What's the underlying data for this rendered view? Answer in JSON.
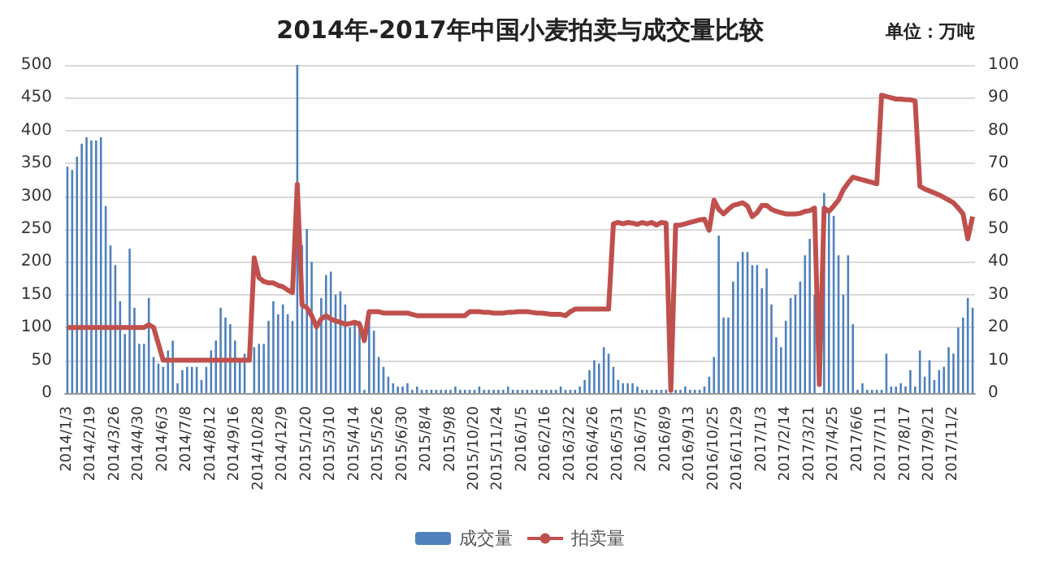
{
  "chart_data": {
    "type": "bar",
    "title": "2014年-2017年中国小麦拍卖与成交量比较",
    "annotations": [
      "单位：万吨"
    ],
    "categories": [
      "2014/1/3",
      null,
      null,
      null,
      null,
      "2014/2/19",
      null,
      null,
      null,
      null,
      "2014/3/26",
      null,
      null,
      null,
      null,
      "2014/4/30",
      null,
      null,
      null,
      null,
      "2014/6/3",
      null,
      null,
      null,
      null,
      "2014/7/8",
      null,
      null,
      null,
      null,
      "2014/8/12",
      null,
      null,
      null,
      null,
      "2014/9/16",
      null,
      null,
      null,
      null,
      "2014/10/28",
      null,
      null,
      null,
      null,
      "2014/12/9",
      null,
      null,
      null,
      null,
      "2015/1/20",
      null,
      null,
      null,
      null,
      "2015/3/10",
      null,
      null,
      null,
      null,
      "2015/4/14",
      null,
      null,
      null,
      null,
      "2015/5/26",
      null,
      null,
      null,
      null,
      "2015/6/30",
      null,
      null,
      null,
      null,
      "2015/8/4",
      null,
      null,
      null,
      null,
      "2015/9/8",
      null,
      null,
      null,
      null,
      "2015/10/20",
      null,
      null,
      null,
      null,
      "2015/11/24",
      null,
      null,
      null,
      null,
      "2016/1/5",
      null,
      null,
      null,
      null,
      "2016/2/16",
      null,
      null,
      null,
      null,
      "2016/3/22",
      null,
      null,
      null,
      null,
      "2016/4/26",
      null,
      null,
      null,
      null,
      "2016/5/31",
      null,
      null,
      null,
      null,
      "2016/7/5",
      null,
      null,
      null,
      null,
      "2016/8/9",
      null,
      null,
      null,
      null,
      "2016/9/13",
      null,
      null,
      null,
      null,
      "2016/10/25",
      null,
      null,
      null,
      null,
      "2016/11/29",
      null,
      null,
      null,
      null,
      "2017/1/3",
      null,
      null,
      null,
      null,
      "2017/2/14",
      null,
      null,
      null,
      null,
      "2017/3/21",
      null,
      null,
      null,
      null,
      "2017/4/25",
      null,
      null,
      null,
      null,
      "2017/6/6",
      null,
      null,
      null,
      null,
      "2017/7/11",
      null,
      null,
      null,
      null,
      "2017/8/17",
      null,
      null,
      null,
      null,
      "2017/9/21",
      null,
      null,
      null,
      null,
      "2017/11/2",
      null,
      null,
      null,
      null
    ],
    "series": [
      {
        "name": "成交量",
        "axis": "y2",
        "color": "#4f81bd",
        "values": [
          69,
          68,
          72,
          76,
          78,
          77,
          77,
          78,
          57,
          45,
          39,
          28,
          18,
          44,
          26,
          15,
          15,
          29,
          11,
          9,
          8,
          13,
          16,
          3,
          7,
          8,
          8,
          8,
          4,
          8,
          13,
          16,
          26,
          23,
          21,
          16,
          10,
          12,
          null,
          14,
          15,
          15,
          22,
          28,
          24,
          27,
          24,
          22,
          100,
          45,
          50,
          40,
          21,
          29,
          36,
          37,
          30,
          31,
          27,
          20,
          22,
          22,
          1,
          22,
          19,
          11,
          8,
          5,
          3,
          2,
          2,
          3,
          1,
          2,
          1,
          1,
          1,
          1,
          1,
          1,
          1,
          2,
          1,
          1,
          1,
          1,
          2,
          1,
          1,
          1,
          1,
          1,
          2,
          1,
          1,
          1,
          1,
          1,
          1,
          1,
          1,
          1,
          1,
          2,
          1,
          1,
          1,
          2,
          4,
          7,
          10,
          9,
          14,
          12,
          8,
          4,
          3,
          3,
          3,
          2,
          1,
          1,
          1,
          1,
          1,
          1,
          0,
          1,
          1,
          2,
          1,
          1,
          1,
          2,
          5,
          11,
          48,
          23,
          23,
          34,
          40,
          43,
          43,
          39,
          39,
          32,
          38,
          27,
          17,
          14,
          22,
          29,
          30,
          34,
          42,
          47,
          30,
          0,
          61,
          56,
          54,
          42,
          30,
          42,
          21,
          1,
          3,
          1,
          1,
          1,
          1,
          12,
          2,
          2,
          3,
          2,
          7,
          2,
          13,
          5,
          10,
          4,
          7,
          8,
          14,
          12,
          20,
          23,
          29,
          26
        ]
      },
      {
        "name": "拍卖量",
        "type": "line",
        "color": "#c0504d",
        "values": [
          100,
          100,
          100,
          100,
          100,
          100,
          100,
          100,
          100,
          100,
          100,
          100,
          100,
          100,
          100,
          100,
          100,
          104,
          100,
          75,
          50,
          50,
          50,
          50,
          50,
          50,
          50,
          50,
          50,
          50,
          50,
          50,
          50,
          50,
          50,
          50,
          50,
          50,
          50,
          206,
          176,
          170,
          168,
          168,
          164,
          162,
          157,
          153,
          318,
          134,
          130,
          118,
          101,
          113,
          118,
          113,
          110,
          108,
          105,
          106,
          108,
          105,
          80,
          124,
          124,
          124,
          122,
          122,
          122,
          122,
          122,
          122,
          120,
          118,
          118,
          118,
          118,
          118,
          118,
          118,
          118,
          118,
          118,
          118,
          124,
          124,
          124,
          123,
          123,
          122,
          122,
          122,
          123,
          123,
          124,
          124,
          124,
          123,
          122,
          122,
          121,
          120,
          120,
          120,
          118,
          124,
          128,
          128,
          128,
          128,
          128,
          128,
          128,
          128,
          258,
          260,
          258,
          260,
          259,
          257,
          260,
          258,
          260,
          256,
          260,
          259,
          4,
          256,
          256,
          258,
          260,
          262,
          264,
          265,
          248,
          294,
          280,
          273,
          280,
          286,
          288,
          290,
          285,
          269,
          275,
          286,
          286,
          280,
          277,
          275,
          273,
          273,
          273,
          274,
          277,
          278,
          282,
          13,
          282,
          277,
          285,
          294,
          310,
          320,
          329,
          327,
          325,
          323,
          321,
          319,
          454,
          452,
          450,
          448,
          448,
          447,
          447,
          445,
          315,
          311,
          308,
          305,
          302,
          298,
          294,
          290,
          282,
          273,
          235,
          269
        ]
      }
    ],
    "ylim": [
      0,
      500
    ],
    "yticks": [
      0,
      50,
      100,
      150,
      200,
      250,
      300,
      350,
      400,
      450,
      500
    ],
    "y2lim": [
      0,
      100
    ],
    "y2ticks": [
      0,
      10,
      20,
      30,
      40,
      50,
      60,
      70,
      80,
      90,
      100
    ],
    "grid": "y",
    "legend": "bottom",
    "marker": "none",
    "line_style": "solid"
  }
}
